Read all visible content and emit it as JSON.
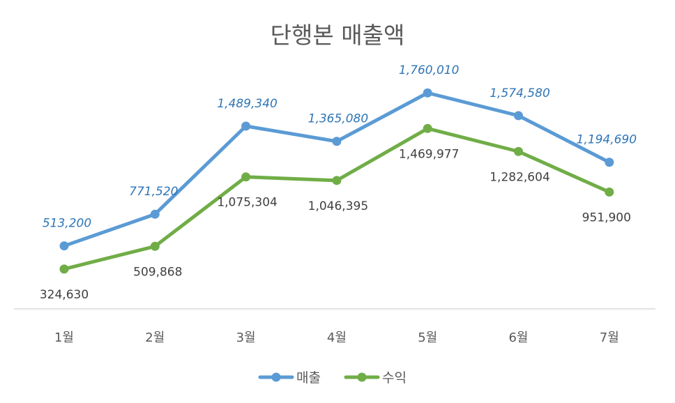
{
  "chart_data": {
    "type": "line",
    "title": "단행본 매출액",
    "categories": [
      "1월",
      "2월",
      "3월",
      "4월",
      "5월",
      "6월",
      "7월"
    ],
    "series": [
      {
        "name": "매출",
        "color": "#5b9bd5",
        "label_color": "#2e75b6",
        "values": [
          513200,
          771520,
          1489340,
          1365080,
          1760010,
          1574580,
          1194690
        ],
        "labels": [
          "513,200",
          "771,520",
          "1,489,340",
          "1,365,080",
          "1,760,010",
          "1,574,580",
          "1,194,690"
        ]
      },
      {
        "name": "수익",
        "color": "#70ad47",
        "label_color": "#404040",
        "values": [
          324630,
          509868,
          1075304,
          1046395,
          1469977,
          1282604,
          951900
        ],
        "labels": [
          "324,630",
          "509,868",
          "1,075,304",
          "1,046,395",
          "1,469,977",
          "1,282,604",
          "951,900"
        ]
      }
    ],
    "legend": {
      "position": "bottom"
    },
    "grid": false
  }
}
